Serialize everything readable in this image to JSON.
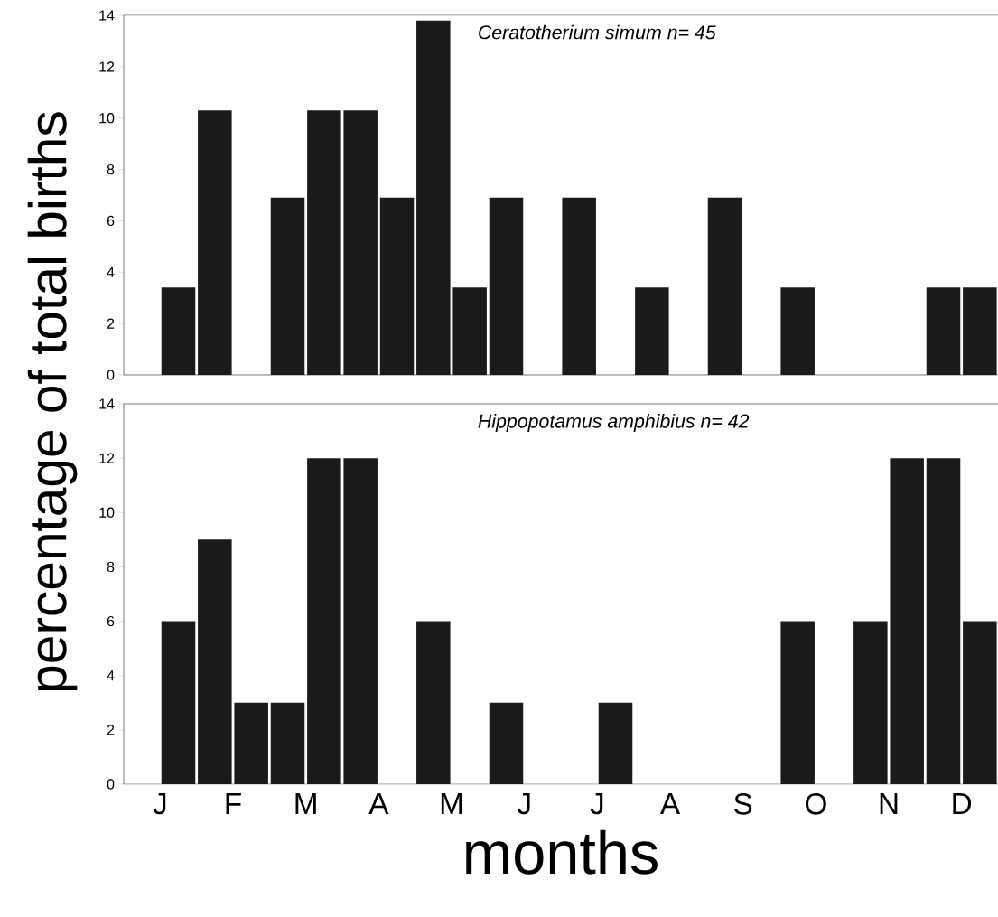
{
  "chart_data": [
    {
      "type": "bar",
      "title": "Ceratotherium simum n= 45",
      "ylabel": "percentage of total births",
      "tick_labels": "y",
      "categories": [
        null,
        null,
        null,
        null,
        null,
        null,
        null,
        null,
        null,
        null,
        null,
        null
      ],
      "series": [
        {
          "color": "#1a1a1a",
          "values": [
            0,
            10.3,
            6.9,
            10.3,
            13.8,
            6.9,
            6.9,
            3.4,
            6.9,
            3.4,
            0,
            3.4
          ]
        },
        {
          "color": "#1a1a1a",
          "values": [
            3.4,
            0,
            10.3,
            6.9,
            3.4,
            0,
            0,
            0,
            0,
            0,
            0,
            3.4
          ]
        }
      ],
      "ylim": [
        0,
        14
      ],
      "yticks": [
        0,
        2,
        4,
        6,
        8,
        10,
        12,
        14
      ]
    },
    {
      "type": "bar",
      "title": "Hippopotamus amphibius n= 42",
      "xlabel": "months",
      "categories": [
        "J",
        "F",
        "M",
        "A",
        "M",
        "J",
        "J",
        "A",
        "S",
        "O",
        "N",
        "D"
      ],
      "series": [
        {
          "color": "#1a1a1a",
          "values": [
            0,
            9.0,
            3.0,
            12.0,
            6.0,
            3.0,
            0,
            0,
            0,
            6.0,
            6.0,
            12.0
          ]
        },
        {
          "color": "#1a1a1a",
          "values": [
            6.0,
            3.0,
            12.0,
            0,
            0,
            0,
            3.0,
            0,
            0,
            0,
            12.0,
            6.0
          ]
        }
      ],
      "ylim": [
        0,
        14
      ],
      "yticks": [
        0,
        2,
        4,
        6,
        8,
        10,
        12,
        14
      ]
    }
  ]
}
